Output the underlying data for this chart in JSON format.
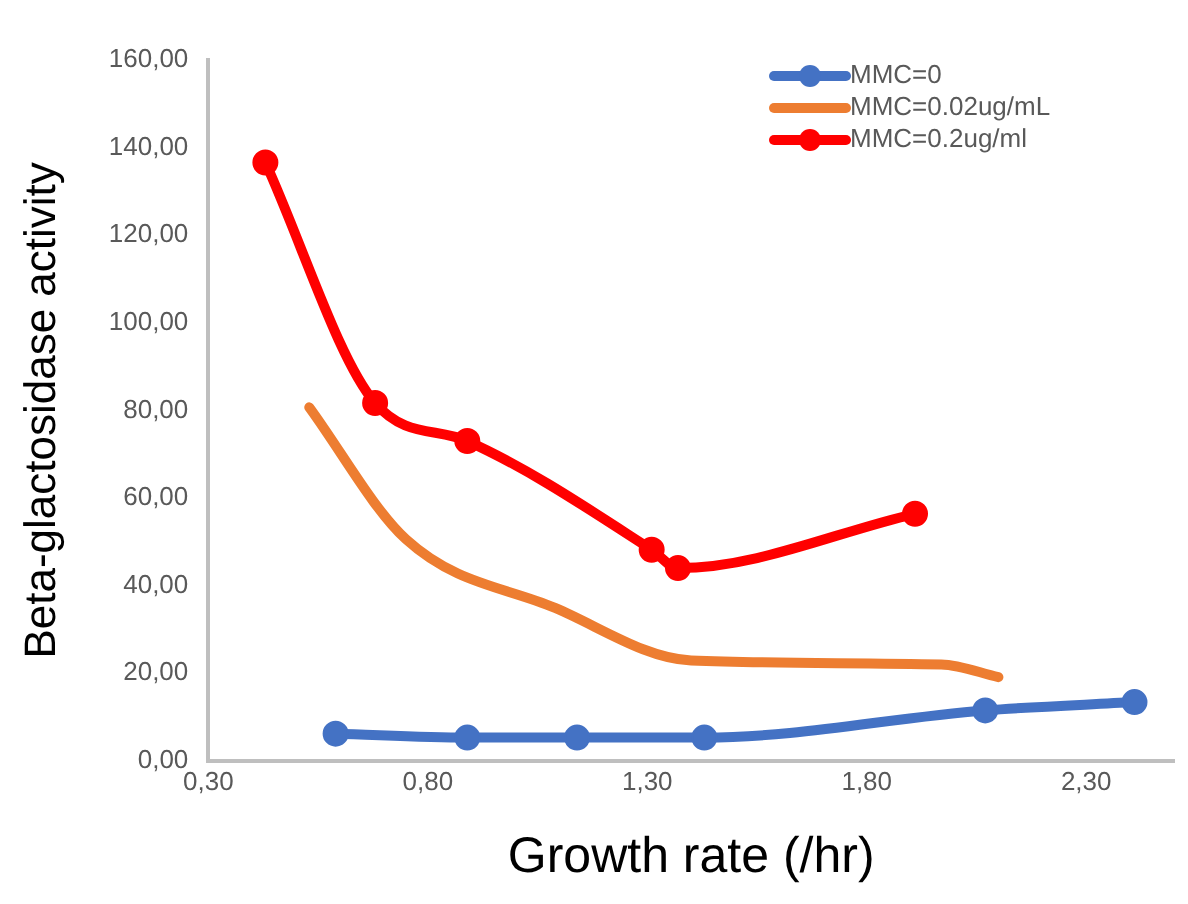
{
  "chart_data": {
    "type": "line",
    "xlabel": "Growth rate (/hr)",
    "ylabel": "Beta-glactosidase activity",
    "xlim": [
      0.3,
      2.5
    ],
    "xticks": [
      {
        "value": 0.3,
        "label": "0,30"
      },
      {
        "value": 0.8,
        "label": "0,80"
      },
      {
        "value": 1.3,
        "label": "1,30"
      },
      {
        "value": 1.8,
        "label": "1,80"
      },
      {
        "value": 2.3,
        "label": "2,30"
      }
    ],
    "ylim": [
      0,
      160
    ],
    "yticks": [
      {
        "value": 0,
        "label": "0,00"
      },
      {
        "value": 20,
        "label": "20,00"
      },
      {
        "value": 40,
        "label": "40,00"
      },
      {
        "value": 60,
        "label": "60,00"
      },
      {
        "value": 80,
        "label": "80,00"
      },
      {
        "value": 100,
        "label": "100,00"
      },
      {
        "value": 120,
        "label": "120,00"
      },
      {
        "value": 140,
        "label": "140,00"
      },
      {
        "value": 160,
        "label": "160,00"
      }
    ],
    "grid": false,
    "legend": "top right",
    "series": [
      {
        "name": "MMC=0",
        "color": "#4472c4",
        "marker": "circle",
        "x": [
          0.59,
          0.89,
          1.14,
          1.43,
          2.07,
          2.41
        ],
        "values": [
          6.2,
          5.3,
          5.3,
          5.3,
          11.5,
          13.4
        ]
      },
      {
        "name": "MMC=0.02ug/mL",
        "color": "#ed7d31",
        "marker": "none",
        "x": [
          0.53,
          0.75,
          1.09,
          1.4,
          1.97,
          2.1
        ],
        "values": [
          80.7,
          50.6,
          34.9,
          22.9,
          22,
          19.1
        ]
      },
      {
        "name": "MMC=0.2ug/ml",
        "color": "#ff0000",
        "marker": "circle",
        "x": [
          0.43,
          0.68,
          0.89,
          1.31,
          1.37,
          1.91
        ],
        "values": [
          136.6,
          81.7,
          73,
          48.2,
          44,
          56.4
        ]
      }
    ]
  }
}
